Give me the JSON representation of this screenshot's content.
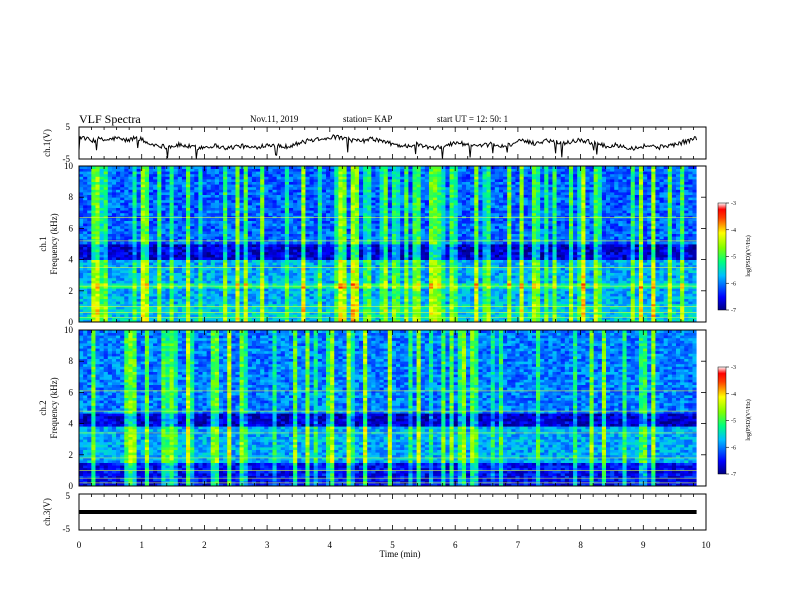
{
  "header": {
    "title": "VLF Spectra",
    "date": "Nov.11, 2019",
    "station": "station= KAP",
    "start": "start  UT =   12: 50: 1"
  },
  "chart_data": [
    {
      "type": "line",
      "id": "ch1-voltage",
      "ylabel": "ch.1(V)",
      "ylim": [
        -5,
        5
      ],
      "yticks": [
        "5",
        "-5"
      ],
      "xlim": [
        0,
        10
      ],
      "x_unit": "min",
      "color": "#000000",
      "approx_values": [
        2.0,
        1.5,
        0.6,
        1.3,
        0.9,
        1.1,
        1.6,
        1.0,
        0.8,
        1.8,
        1.2,
        -0.2,
        -0.5,
        -0.8,
        -1.2,
        -1.0,
        -0.6,
        -0.9,
        -1.2,
        -1.5,
        -1.3,
        -1.0,
        -0.8,
        -1.4,
        -1.6,
        -1.1,
        -0.9,
        -1.3,
        -1.5,
        -1.0,
        -0.6,
        -0.4,
        -0.8,
        -1.2,
        -0.7,
        -0.2,
        0.3,
        0.8,
        1.2,
        1.5,
        1.7,
        1.9,
        1.6,
        1.2,
        0.8,
        0.5,
        0.9,
        1.3,
        0.9,
        0.3,
        -0.2,
        -0.6,
        -1.0,
        -0.8,
        -0.4,
        -0.9,
        -1.3,
        -1.8,
        -1.2,
        -0.6,
        -0.2,
        0.1,
        -0.4,
        -0.9,
        -1.2,
        -0.8,
        -0.3,
        -0.7,
        -1.1,
        -0.5,
        0.2,
        0.6,
        0.3,
        -0.2,
        0.4,
        0.9,
        0.6,
        0.2,
        -0.1,
        0.5,
        1.0,
        0.7,
        0.3,
        -0.3,
        -0.8,
        -1.1,
        -0.7,
        -0.9,
        -1.3,
        -1.6,
        -1.2,
        -0.8,
        -1.0,
        -1.4,
        -0.9,
        -0.6,
        -0.3,
        0.4,
        0.9,
        1.6
      ]
    },
    {
      "type": "heatmap",
      "id": "ch1-spectrogram",
      "ylabel": "ch.1\nFrequency (kHz)",
      "ylim": [
        0,
        10
      ],
      "yticks": [
        "0",
        "2",
        "4",
        "6",
        "8",
        "10"
      ],
      "xlim": [
        0,
        10
      ],
      "colorbar": {
        "label": "log(PSD)(V²/Hz)",
        "range": [
          -7,
          -3
        ],
        "ticks": [
          "-3",
          "-4",
          "-5",
          "-6",
          "-7"
        ]
      }
    },
    {
      "type": "heatmap",
      "id": "ch2-spectrogram",
      "ylabel": "ch.2\nFrequency (kHz)",
      "ylim": [
        0,
        10
      ],
      "yticks": [
        "0",
        "2",
        "4",
        "6",
        "8",
        "10"
      ],
      "xlim": [
        0,
        10
      ],
      "colorbar": {
        "label": "log(PSD)(V²/Hz)",
        "range": [
          -7,
          -3
        ],
        "ticks": [
          "-3",
          "-4",
          "-5",
          "-6",
          "-7"
        ]
      }
    },
    {
      "type": "line",
      "id": "ch3-voltage",
      "ylabel": "ch.3(V)",
      "ylim": [
        -5,
        5
      ],
      "yticks": [
        "5",
        "-5"
      ],
      "xlim": [
        0,
        10
      ],
      "color": "#000000",
      "values": [
        0,
        0
      ],
      "x": [
        0,
        9.85
      ]
    }
  ],
  "xaxis": {
    "label": "Time (min)",
    "ticks": [
      "0",
      "1",
      "2",
      "3",
      "4",
      "5",
      "6",
      "7",
      "8",
      "9",
      "10"
    ]
  },
  "colors": {
    "low": "#00008b",
    "mid": "#00ffff",
    "high": "#ff0000"
  }
}
